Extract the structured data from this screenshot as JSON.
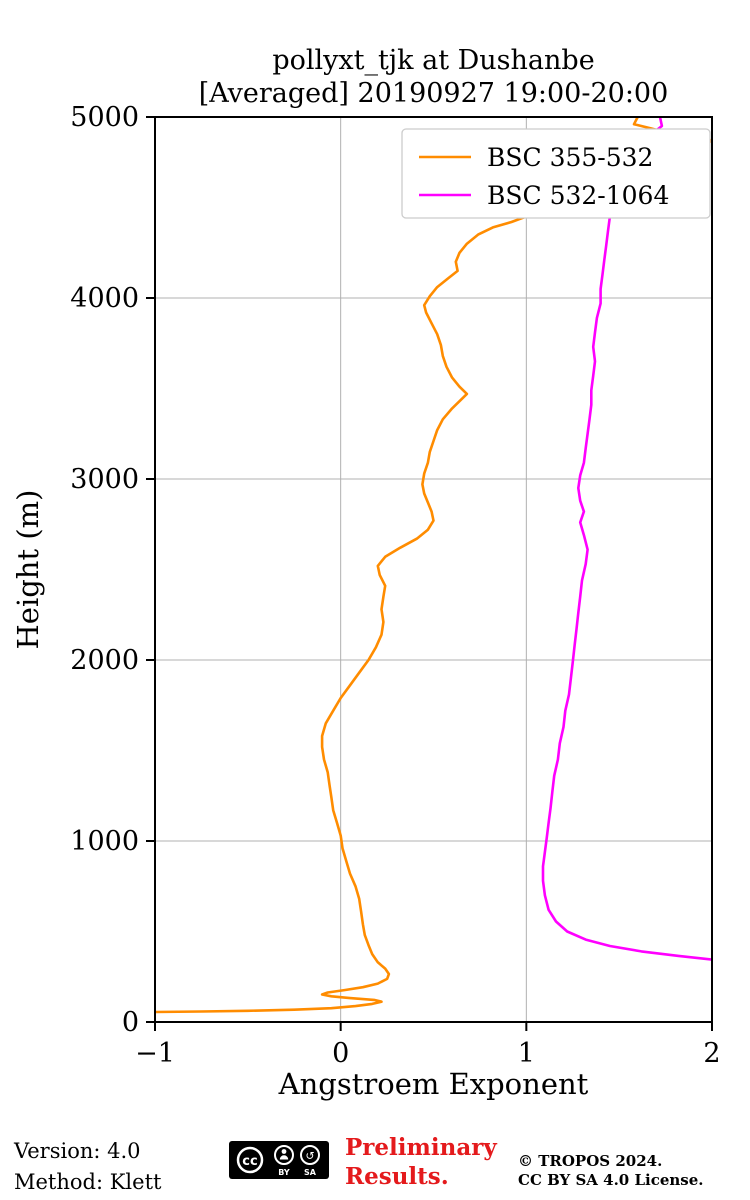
{
  "title": {
    "line1": "pollyxt_tjk at Dushanbe",
    "line2": "[Averaged] 20190927 19:00-20:00"
  },
  "footer": {
    "version": "Version: 4.0",
    "method": "Method: Klett",
    "preliminary_line1": "Preliminary",
    "preliminary_line2": "Results.",
    "copyright_line1": "© TROPOS 2024.",
    "copyright_line2": "CC BY SA 4.0 License.",
    "cc_badge": "CC BY SA"
  },
  "colors": {
    "orange": "#ff8c00",
    "magenta": "#ff00ff",
    "grid": "#b0b0b0",
    "axis": "#000000",
    "legend_border": "#cccccc",
    "preliminary_red": "#e41a1c"
  },
  "chart_data": {
    "type": "line",
    "title": "pollyxt_tjk at Dushanbe [Averaged] 20190927 19:00-20:00",
    "xlabel": "Angstroem Exponent",
    "ylabel": "Height (m)",
    "xlim": [
      -1,
      2
    ],
    "ylim": [
      0,
      5000
    ],
    "xticks": [
      -1,
      0,
      1,
      2
    ],
    "yticks": [
      0,
      1000,
      2000,
      3000,
      4000,
      5000
    ],
    "grid": true,
    "legend_position": "upper right inside",
    "series": [
      {
        "name": "BSC 355-532",
        "color": "#ff8c00",
        "points": [
          [
            -1.0,
            55
          ],
          [
            -0.75,
            58
          ],
          [
            -0.5,
            62
          ],
          [
            -0.25,
            68
          ],
          [
            -0.05,
            76
          ],
          [
            0.08,
            88
          ],
          [
            0.17,
            100
          ],
          [
            0.22,
            112
          ],
          [
            0.18,
            122
          ],
          [
            0.05,
            132
          ],
          [
            -0.05,
            142
          ],
          [
            -0.1,
            152
          ],
          [
            -0.07,
            163
          ],
          [
            0.02,
            176
          ],
          [
            0.12,
            192
          ],
          [
            0.2,
            212
          ],
          [
            0.25,
            238
          ],
          [
            0.26,
            265
          ],
          [
            0.24,
            295
          ],
          [
            0.2,
            330
          ],
          [
            0.17,
            375
          ],
          [
            0.15,
            425
          ],
          [
            0.13,
            480
          ],
          [
            0.12,
            540
          ],
          [
            0.11,
            610
          ],
          [
            0.1,
            680
          ],
          [
            0.08,
            750
          ],
          [
            0.05,
            820
          ],
          [
            0.03,
            890
          ],
          [
            0.01,
            960
          ],
          [
            0.0,
            1030
          ],
          [
            -0.02,
            1100
          ],
          [
            -0.04,
            1170
          ],
          [
            -0.05,
            1240
          ],
          [
            -0.06,
            1310
          ],
          [
            -0.07,
            1380
          ],
          [
            -0.09,
            1450
          ],
          [
            -0.1,
            1520
          ],
          [
            -0.1,
            1580
          ],
          [
            -0.08,
            1650
          ],
          [
            -0.04,
            1720
          ],
          [
            0.0,
            1790
          ],
          [
            0.05,
            1860
          ],
          [
            0.1,
            1930
          ],
          [
            0.15,
            2000
          ],
          [
            0.19,
            2070
          ],
          [
            0.22,
            2140
          ],
          [
            0.23,
            2210
          ],
          [
            0.22,
            2280
          ],
          [
            0.23,
            2350
          ],
          [
            0.24,
            2410
          ],
          [
            0.21,
            2470
          ],
          [
            0.2,
            2520
          ],
          [
            0.24,
            2570
          ],
          [
            0.32,
            2620
          ],
          [
            0.41,
            2670
          ],
          [
            0.47,
            2720
          ],
          [
            0.5,
            2770
          ],
          [
            0.49,
            2820
          ],
          [
            0.47,
            2870
          ],
          [
            0.45,
            2920
          ],
          [
            0.44,
            2970
          ],
          [
            0.45,
            3030
          ],
          [
            0.47,
            3090
          ],
          [
            0.48,
            3150
          ],
          [
            0.5,
            3210
          ],
          [
            0.52,
            3270
          ],
          [
            0.55,
            3330
          ],
          [
            0.6,
            3390
          ],
          [
            0.65,
            3440
          ],
          [
            0.68,
            3470
          ],
          [
            0.64,
            3510
          ],
          [
            0.6,
            3560
          ],
          [
            0.57,
            3620
          ],
          [
            0.55,
            3680
          ],
          [
            0.54,
            3740
          ],
          [
            0.52,
            3800
          ],
          [
            0.49,
            3860
          ],
          [
            0.46,
            3920
          ],
          [
            0.45,
            3960
          ],
          [
            0.48,
            4010
          ],
          [
            0.52,
            4060
          ],
          [
            0.58,
            4110
          ],
          [
            0.63,
            4150
          ],
          [
            0.62,
            4200
          ],
          [
            0.64,
            4250
          ],
          [
            0.68,
            4300
          ],
          [
            0.74,
            4350
          ],
          [
            0.82,
            4390
          ],
          [
            0.92,
            4420
          ],
          [
            1.0,
            4450
          ],
          [
            1.08,
            4490
          ],
          [
            1.18,
            4530
          ],
          [
            1.32,
            4570
          ],
          [
            1.52,
            4610
          ],
          [
            1.75,
            4640
          ],
          [
            1.9,
            4660
          ],
          [
            1.82,
            4700
          ],
          [
            1.7,
            4740
          ],
          [
            1.72,
            4780
          ],
          [
            1.85,
            4820
          ],
          [
            1.97,
            4850
          ],
          [
            2.0,
            4870
          ],
          [
            1.88,
            4900
          ],
          [
            1.7,
            4930
          ],
          [
            1.58,
            4960
          ],
          [
            1.6,
            5000
          ]
        ]
      },
      {
        "name": "BSC 532-1064",
        "color": "#ff00ff",
        "points": [
          [
            2.0,
            345
          ],
          [
            1.82,
            365
          ],
          [
            1.62,
            390
          ],
          [
            1.45,
            420
          ],
          [
            1.32,
            455
          ],
          [
            1.22,
            500
          ],
          [
            1.16,
            555
          ],
          [
            1.12,
            620
          ],
          [
            1.1,
            700
          ],
          [
            1.09,
            780
          ],
          [
            1.09,
            860
          ],
          [
            1.1,
            940
          ],
          [
            1.11,
            1020
          ],
          [
            1.12,
            1100
          ],
          [
            1.13,
            1180
          ],
          [
            1.14,
            1270
          ],
          [
            1.15,
            1360
          ],
          [
            1.17,
            1450
          ],
          [
            1.18,
            1540
          ],
          [
            1.2,
            1630
          ],
          [
            1.21,
            1720
          ],
          [
            1.23,
            1810
          ],
          [
            1.24,
            1900
          ],
          [
            1.25,
            1990
          ],
          [
            1.26,
            2080
          ],
          [
            1.27,
            2170
          ],
          [
            1.28,
            2260
          ],
          [
            1.29,
            2350
          ],
          [
            1.3,
            2440
          ],
          [
            1.32,
            2530
          ],
          [
            1.33,
            2610
          ],
          [
            1.31,
            2690
          ],
          [
            1.29,
            2760
          ],
          [
            1.31,
            2820
          ],
          [
            1.29,
            2880
          ],
          [
            1.28,
            2950
          ],
          [
            1.29,
            3020
          ],
          [
            1.31,
            3090
          ],
          [
            1.32,
            3170
          ],
          [
            1.33,
            3250
          ],
          [
            1.34,
            3330
          ],
          [
            1.35,
            3410
          ],
          [
            1.35,
            3490
          ],
          [
            1.36,
            3570
          ],
          [
            1.37,
            3650
          ],
          [
            1.36,
            3730
          ],
          [
            1.37,
            3810
          ],
          [
            1.38,
            3890
          ],
          [
            1.4,
            3970
          ],
          [
            1.4,
            4050
          ],
          [
            1.41,
            4130
          ],
          [
            1.42,
            4210
          ],
          [
            1.43,
            4290
          ],
          [
            1.44,
            4370
          ],
          [
            1.45,
            4450
          ],
          [
            1.46,
            4530
          ],
          [
            1.48,
            4610
          ],
          [
            1.5,
            4680
          ],
          [
            1.53,
            4750
          ],
          [
            1.57,
            4810
          ],
          [
            1.62,
            4860
          ],
          [
            1.68,
            4910
          ],
          [
            1.73,
            4950
          ],
          [
            1.72,
            5000
          ]
        ]
      }
    ]
  }
}
